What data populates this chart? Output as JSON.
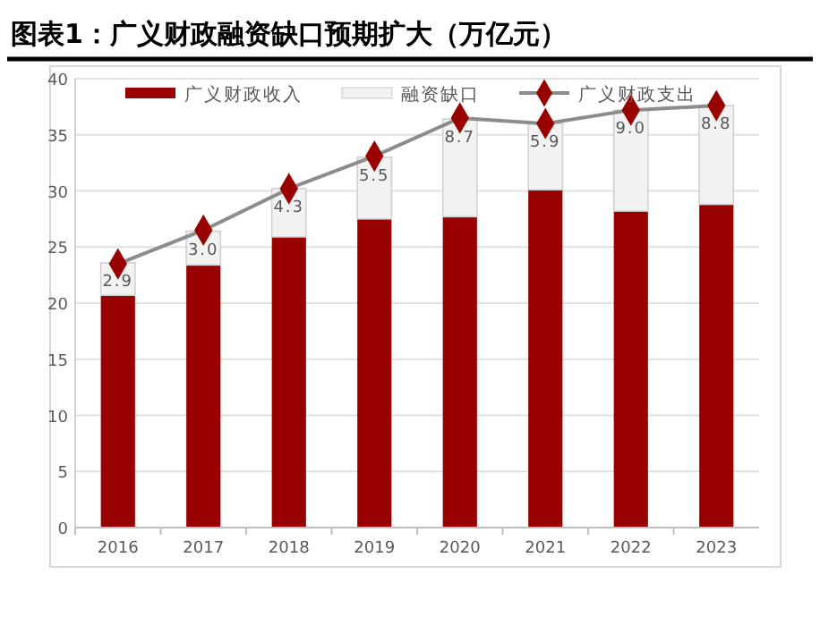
{
  "chart_data": {
    "type": "bar",
    "title": "图表1：广义财政融资缺口预期扩大（万亿元）",
    "categories": [
      "2016",
      "2017",
      "2018",
      "2019",
      "2020",
      "2021",
      "2022",
      "2023"
    ],
    "stacked": true,
    "series": [
      {
        "name": "广义财政收入",
        "color": "#990000",
        "values": [
          20.7,
          23.4,
          25.9,
          27.5,
          27.7,
          30.1,
          28.2,
          28.8
        ]
      },
      {
        "name": "融资缺口",
        "color": "#f2f2f2",
        "values": [
          2.9,
          3.0,
          4.3,
          5.5,
          8.7,
          5.9,
          9.0,
          8.8
        ],
        "value_labels": [
          "2.9",
          "3.0",
          "4.3",
          "5.5",
          "8.7",
          "5.9",
          "9.0",
          "8.8"
        ]
      },
      {
        "name": "广义财政支出",
        "type": "line",
        "color": "#990000",
        "values": [
          23.5,
          26.5,
          30.2,
          33.1,
          36.5,
          36.0,
          37.2,
          37.6
        ],
        "marker": "diamond"
      }
    ],
    "ylim": [
      0,
      40
    ],
    "yticks": [
      0,
      5,
      10,
      15,
      20,
      25,
      30,
      35,
      40
    ],
    "grid": "y",
    "legend": "top"
  }
}
